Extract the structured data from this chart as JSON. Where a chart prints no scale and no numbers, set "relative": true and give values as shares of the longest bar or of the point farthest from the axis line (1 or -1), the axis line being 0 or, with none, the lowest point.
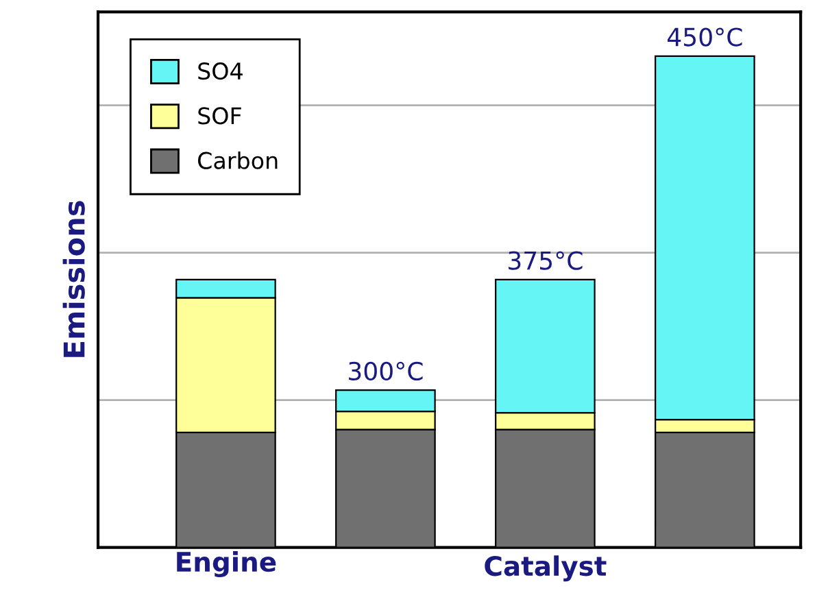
{
  "chart_data": {
    "type": "bar",
    "stacked": true,
    "relative": true,
    "ylabel": "Emissions",
    "categories": [
      "Engine",
      "300°C",
      "375°C",
      "450°C"
    ],
    "series": [
      {
        "name": "Carbon",
        "color": "#707070",
        "values": [
          0.234,
          0.24,
          0.24,
          0.234
        ]
      },
      {
        "name": "SOF",
        "color": "#ffff99",
        "values": [
          0.274,
          0.037,
          0.034,
          0.026
        ]
      },
      {
        "name": "SO4",
        "color": "#66f5f5",
        "values": [
          0.037,
          0.043,
          0.271,
          0.74
        ]
      }
    ],
    "annotations": [
      "Catalyst"
    ],
    "grid": "y",
    "legend": "top left"
  }
}
